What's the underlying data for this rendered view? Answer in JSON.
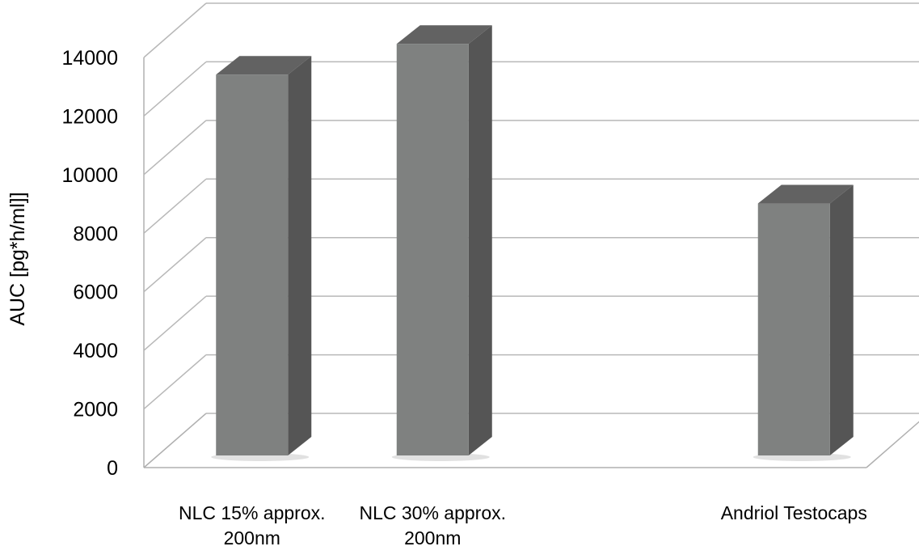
{
  "chart_data": {
    "type": "bar",
    "style": "3d-column",
    "title": "",
    "xlabel": "",
    "ylabel": "AUC [pg*h/ml]]",
    "ylim": [
      0,
      14000
    ],
    "yticks": [
      "0",
      "2000",
      "4000",
      "6000",
      "8000",
      "10000",
      "12000",
      "14000"
    ],
    "grid": true,
    "legend": "none",
    "categories": [
      [
        "NLC 15% approx.",
        "200nm"
      ],
      [
        "NLC 30% approx.",
        "200nm"
      ],
      [
        ""
      ],
      [
        "Andriol Testocaps"
      ]
    ],
    "values": [
      13000,
      14050,
      null,
      8600
    ],
    "colors": {
      "bar_front": "#7f8180",
      "bar_side": "#555555",
      "bar_top": "#626262",
      "grid": "#b8b8b8",
      "axis": "#b0b0b0"
    }
  }
}
